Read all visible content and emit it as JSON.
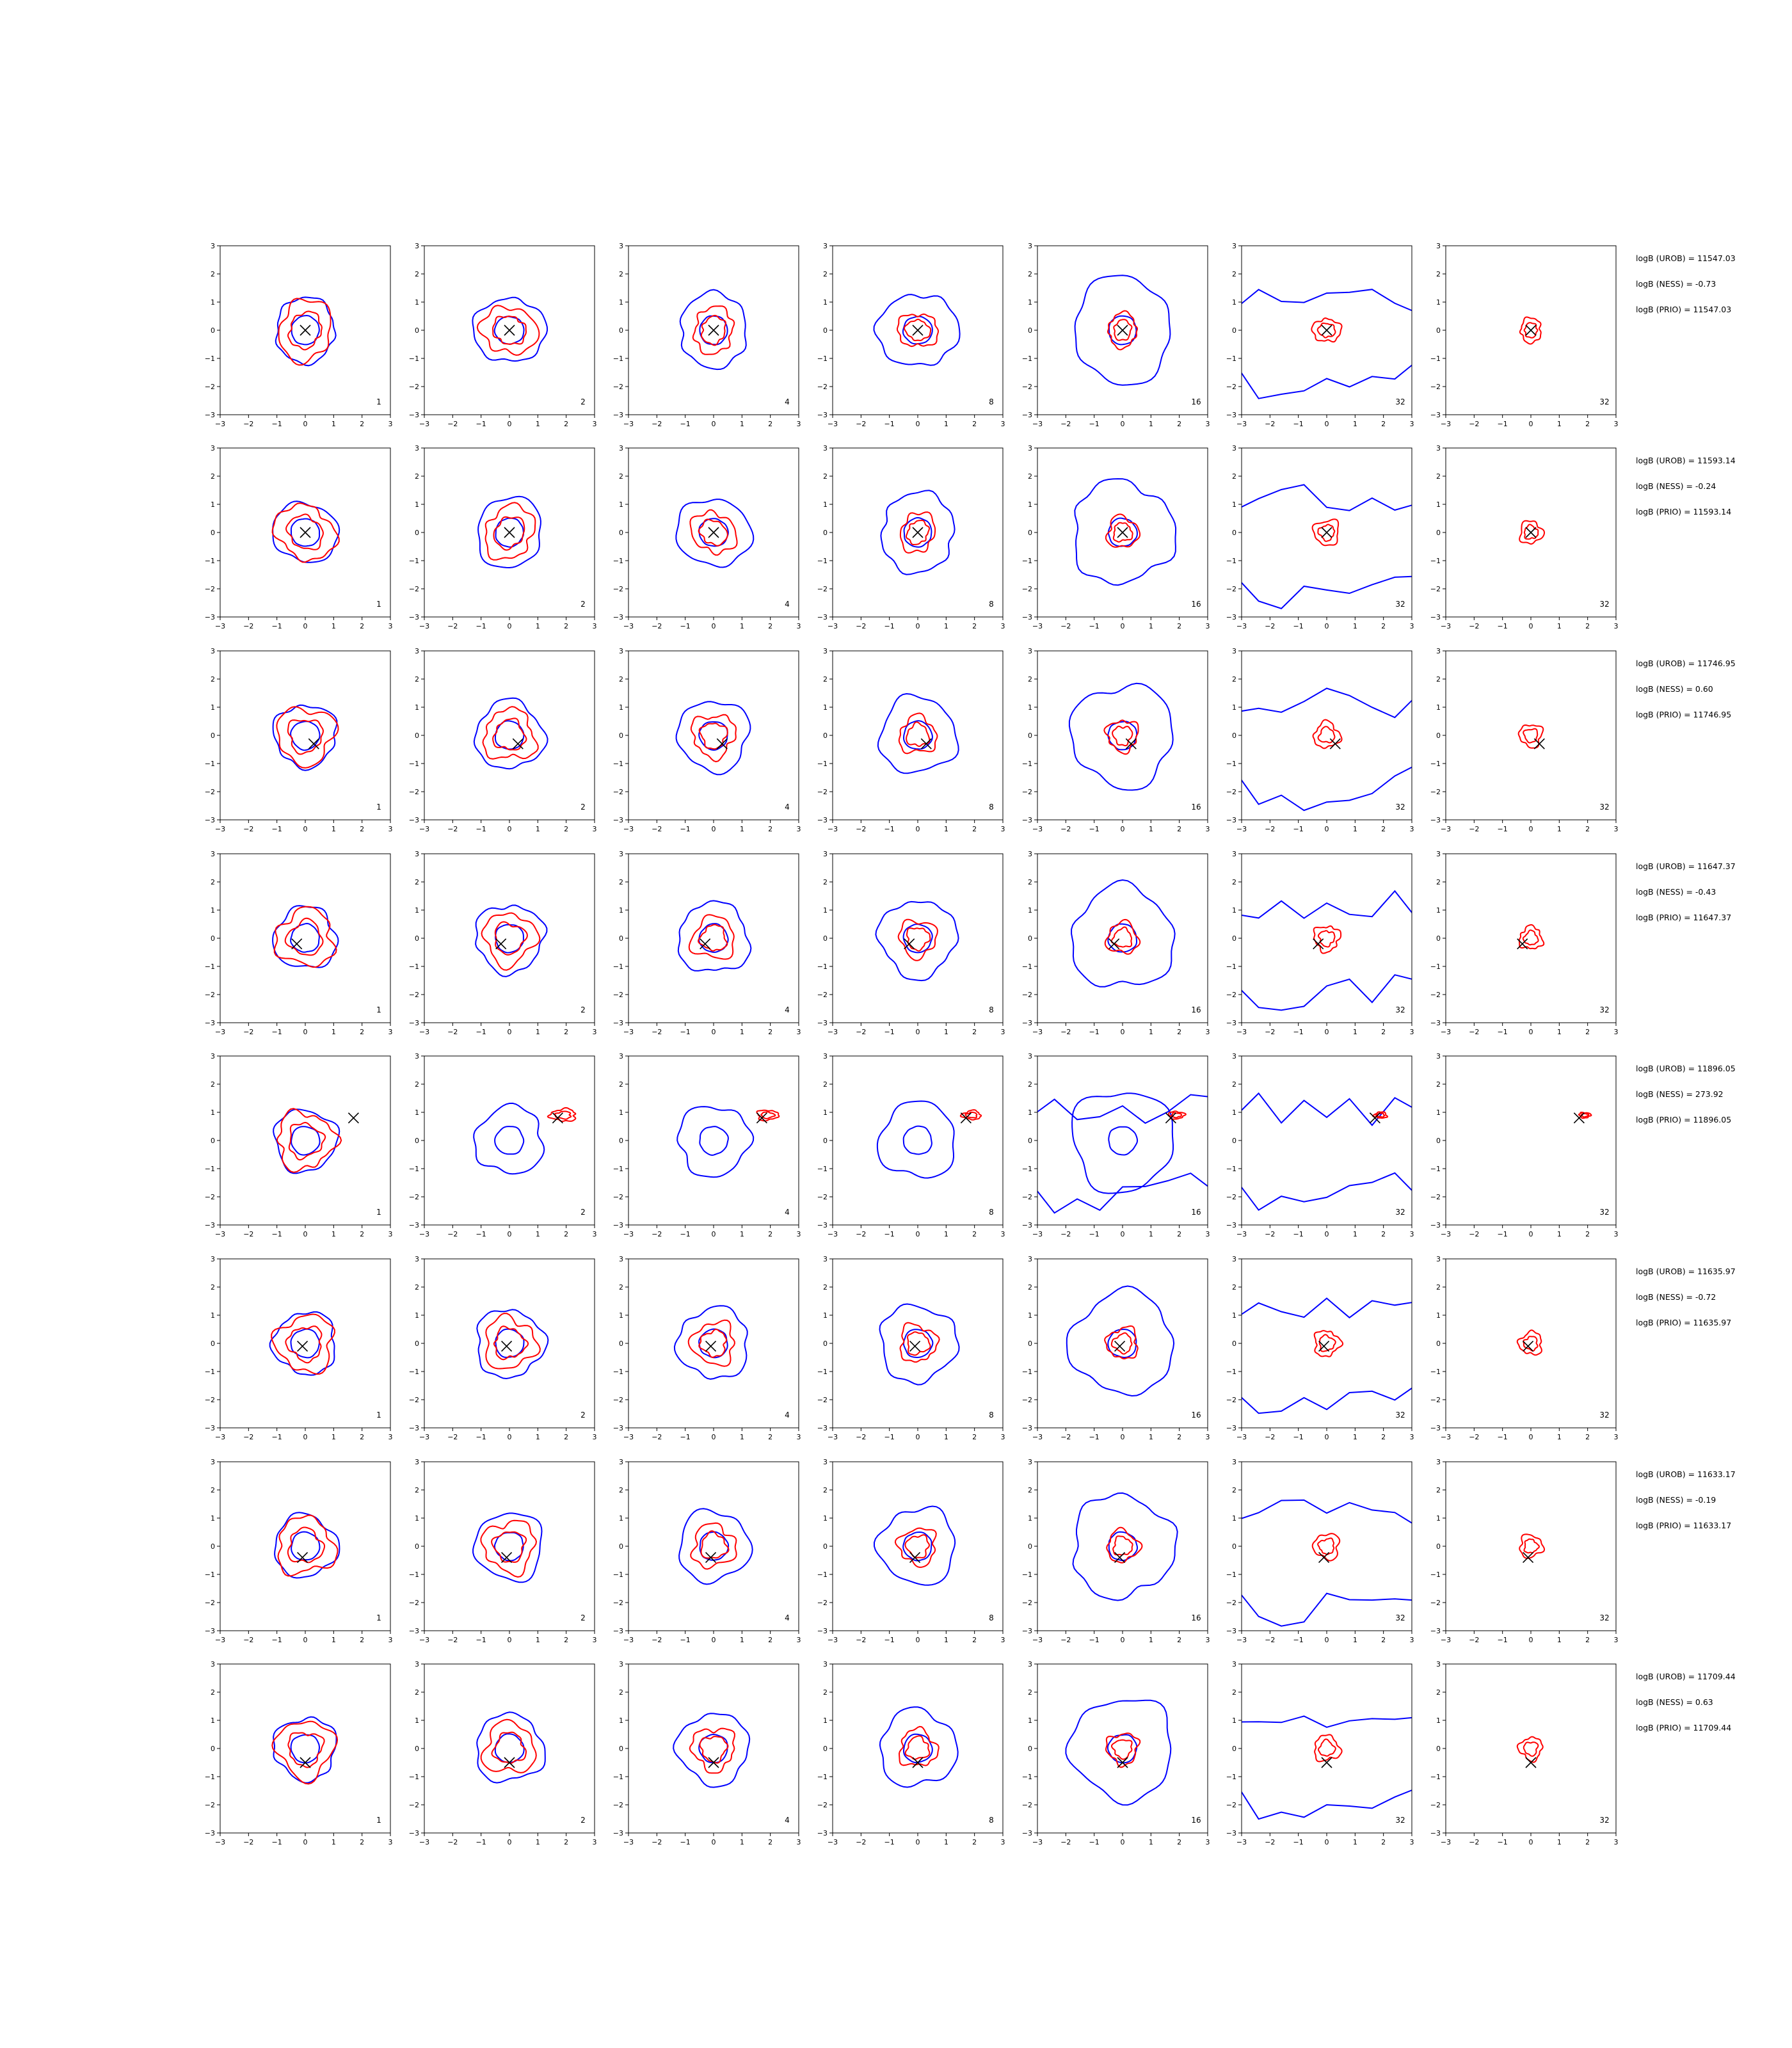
{
  "chart_data": {
    "type": "contour",
    "layout": {
      "rows": 8,
      "cols": 7
    },
    "xlim": [
      -3,
      3
    ],
    "ylim": [
      -3,
      3
    ],
    "xticks": [
      -3,
      -2,
      -1,
      0,
      1,
      2,
      3
    ],
    "yticks": [
      -3,
      -2,
      -1,
      0,
      1,
      2,
      3
    ],
    "tick_labels": [
      "−3",
      "−2",
      "−1",
      "0",
      "1",
      "2",
      "3"
    ],
    "column_labels": [
      "1",
      "2",
      "4",
      "8",
      "16",
      "32",
      "32"
    ],
    "colors": {
      "blue_contour": "#0000ff",
      "red_contour": "#ff0000",
      "marker": "#000000"
    },
    "rows": [
      {
        "marker": [
          0.0,
          0.0
        ],
        "stats": [
          "logB (UROB) = 11547.03",
          "logB (NESS) = -0.73",
          "logB (PRIO) = 11547.03"
        ]
      },
      {
        "marker": [
          0.0,
          0.0
        ],
        "stats": [
          "logB (UROB) = 11593.14",
          "logB (NESS) = -0.24",
          "logB (PRIO) = 11593.14"
        ]
      },
      {
        "marker": [
          0.3,
          -0.3
        ],
        "stats": [
          "logB (UROB) = 11746.95",
          "logB (NESS) = 0.60",
          "logB (PRIO) = 11746.95"
        ]
      },
      {
        "marker": [
          -0.3,
          -0.2
        ],
        "stats": [
          "logB (UROB) = 11647.37",
          "logB (NESS) = -0.43",
          "logB (PRIO) = 11647.37"
        ]
      },
      {
        "marker": [
          1.7,
          0.8
        ],
        "stats": [
          "logB (UROB) = 11896.05",
          "logB (NESS) = 273.92",
          "logB (PRIO) = 11896.05"
        ]
      },
      {
        "marker": [
          -0.1,
          -0.1
        ],
        "stats": [
          "logB (UROB) = 11635.97",
          "logB (NESS) = -0.72",
          "logB (PRIO) = 11635.97"
        ]
      },
      {
        "marker": [
          -0.1,
          -0.4
        ],
        "stats": [
          "logB (UROB) = 11633.17",
          "logB (NESS) = -0.19",
          "logB (PRIO) = 11633.17"
        ]
      },
      {
        "marker": [
          0.0,
          -0.5
        ],
        "stats": [
          "logB (UROB) = 11709.44",
          "logB (NESS) = 0.63",
          "logB (PRIO) = 11709.44"
        ]
      }
    ]
  }
}
